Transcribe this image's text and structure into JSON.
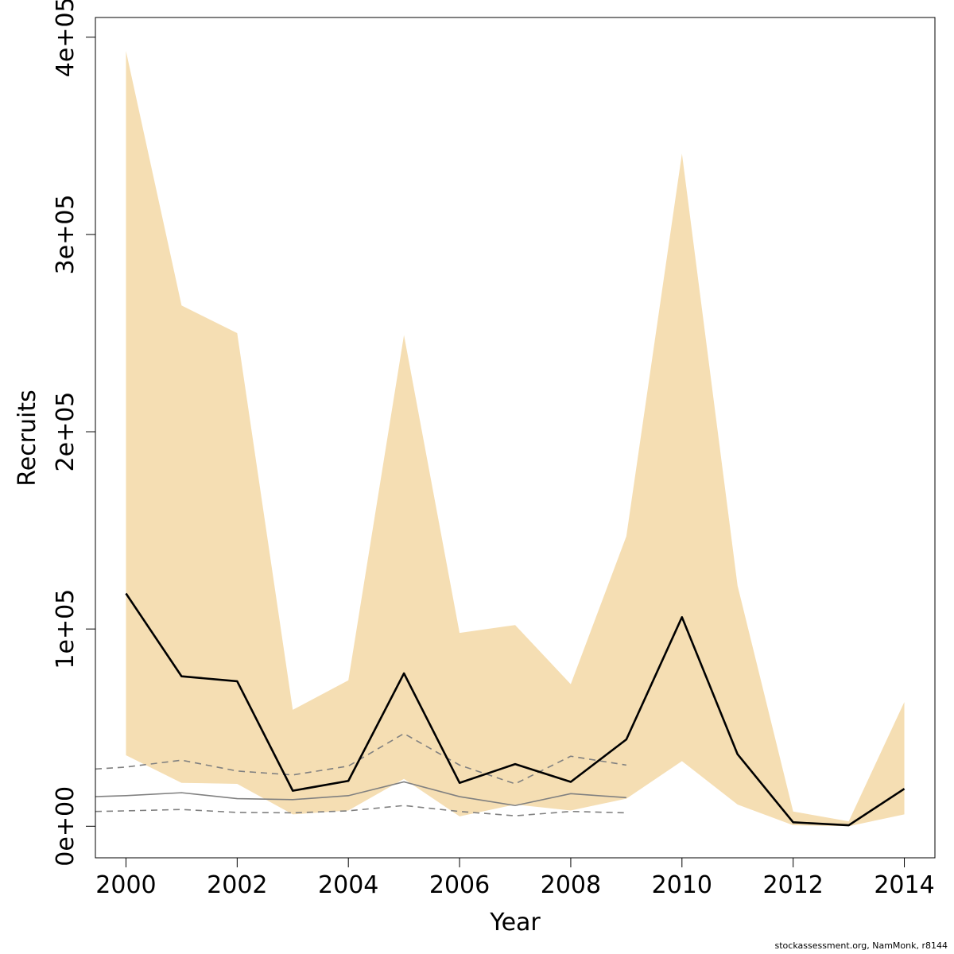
{
  "chart_data": {
    "type": "line",
    "title": "",
    "xlabel": "Year",
    "ylabel": "Recruits",
    "xlim": [
      1999.45,
      2014.55
    ],
    "ylim": [
      -16000,
      410000
    ],
    "x_ticks": [
      2000,
      2002,
      2004,
      2006,
      2008,
      2010,
      2012,
      2014
    ],
    "y_ticks": [
      0,
      100000,
      200000,
      300000,
      400000
    ],
    "y_tick_labels": [
      "0e+00",
      "1e+05",
      "2e+05",
      "3e+05",
      "4e+05"
    ],
    "grid": false,
    "colors": {
      "band": "#f5deb3",
      "main_line": "#000000",
      "reference_line": "#808080",
      "reference_dashed": "#808080"
    },
    "series": [
      {
        "name": "recruits_upper",
        "role": "band-upper",
        "x": [
          2000,
          2001,
          2002,
          2003,
          2004,
          2005,
          2006,
          2007,
          2008,
          2009,
          2010,
          2011,
          2012,
          2013,
          2014
        ],
        "values": [
          393000,
          264000,
          250000,
          59000,
          74000,
          249000,
          98000,
          102000,
          72000,
          147000,
          341000,
          122000,
          7500,
          2500,
          63000
        ]
      },
      {
        "name": "recruits_lower",
        "role": "band-lower",
        "x": [
          2000,
          2001,
          2002,
          2003,
          2004,
          2005,
          2006,
          2007,
          2008,
          2009,
          2010,
          2011,
          2012,
          2013,
          2014
        ],
        "values": [
          36000,
          22000,
          21500,
          6000,
          8000,
          24000,
          5000,
          11000,
          8000,
          14000,
          33000,
          11000,
          500,
          0,
          6000
        ]
      },
      {
        "name": "recruits",
        "role": "main",
        "x": [
          2000,
          2001,
          2002,
          2003,
          2004,
          2005,
          2006,
          2007,
          2008,
          2009,
          2010,
          2011,
          2012,
          2013,
          2014
        ],
        "values": [
          118000,
          76000,
          73500,
          18000,
          23000,
          77500,
          22000,
          31500,
          22500,
          44000,
          106000,
          36500,
          2000,
          500,
          19000
        ]
      },
      {
        "name": "reference",
        "role": "ref-solid",
        "x": [
          1999.45,
          2000,
          2001,
          2002,
          2003,
          2004,
          2005,
          2006,
          2007,
          2008,
          2009
        ],
        "values": [
          15000,
          15500,
          17000,
          14000,
          13500,
          15500,
          22500,
          15000,
          10500,
          16500,
          14500
        ]
      },
      {
        "name": "reference_upper",
        "role": "ref-dashed",
        "x": [
          1999.45,
          2000,
          2001,
          2002,
          2003,
          2004,
          2005,
          2006,
          2007,
          2008,
          2009
        ],
        "values": [
          29000,
          30000,
          33500,
          28000,
          26000,
          30500,
          47000,
          31000,
          21500,
          35500,
          31000
        ]
      },
      {
        "name": "reference_lower",
        "role": "ref-dashed",
        "x": [
          1999.45,
          2000,
          2001,
          2002,
          2003,
          2004,
          2005,
          2006,
          2007,
          2008,
          2009
        ],
        "values": [
          7500,
          7800,
          8500,
          7000,
          6800,
          7800,
          10500,
          7500,
          5300,
          7500,
          6800
        ]
      }
    ]
  },
  "footer": {
    "credit": "stockassessment.org, NamMonk, r8144"
  }
}
